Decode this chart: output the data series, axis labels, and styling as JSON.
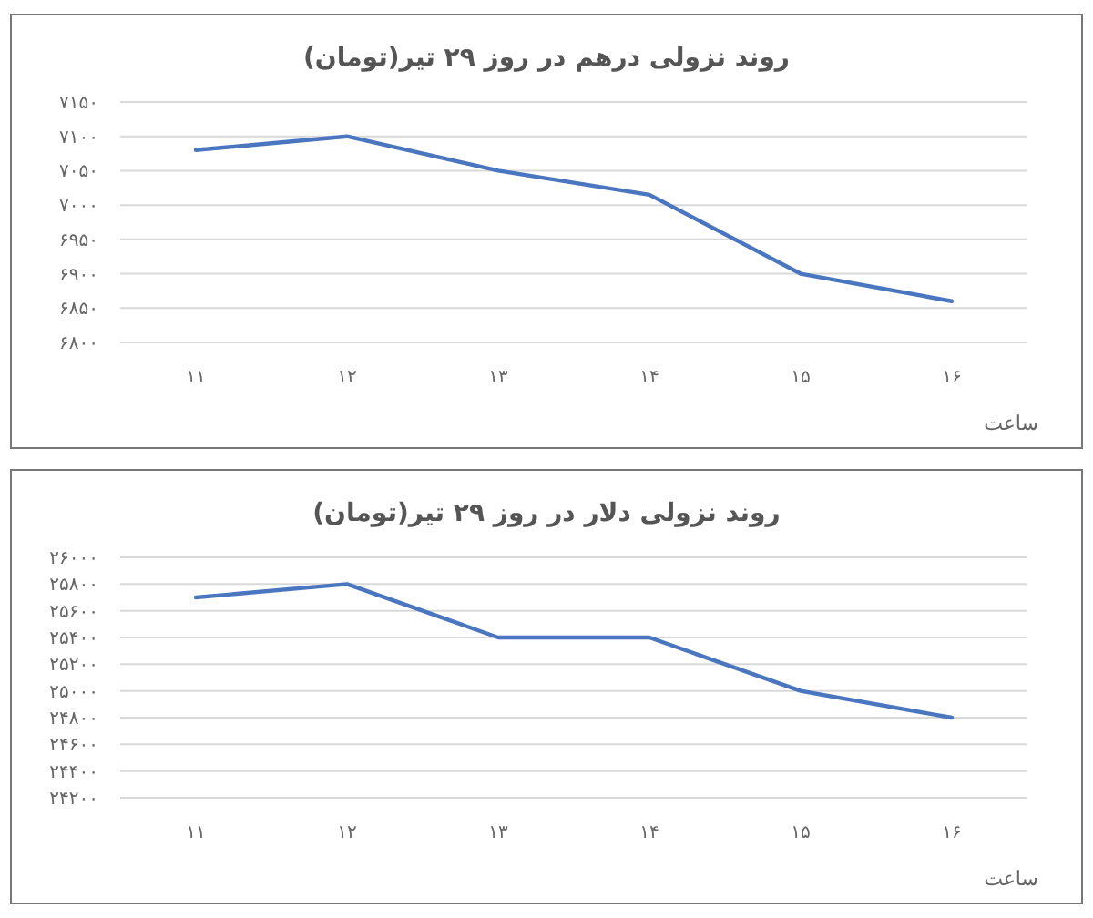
{
  "chart_data": [
    {
      "type": "line",
      "title": "روند نزولی درهم در روز ۲۹ تیر(تومان)",
      "xlabel": "ساعت",
      "categories": [
        "۱۱",
        "۱۲",
        "۱۳",
        "۱۴",
        "۱۵",
        "۱۶"
      ],
      "series": [
        {
          "color": "#4a76c0",
          "values": [
            7080,
            7100,
            7050,
            7015,
            6900,
            6860
          ]
        }
      ],
      "ylim": [
        6800,
        7150
      ],
      "yticks": [
        {
          "value": 6800,
          "label": "۶۸۰۰"
        },
        {
          "value": 6850,
          "label": "۶۸۵۰"
        },
        {
          "value": 6900,
          "label": "۶۹۰۰"
        },
        {
          "value": 6950,
          "label": "۶۹۵۰"
        },
        {
          "value": 7000,
          "label": "۷۰۰۰"
        },
        {
          "value": 7050,
          "label": "۷۰۵۰"
        },
        {
          "value": 7100,
          "label": "۷۱۰۰"
        },
        {
          "value": 7150,
          "label": "۷۱۵۰"
        }
      ],
      "grid": "y",
      "marker": "none",
      "line_style": "solid"
    },
    {
      "type": "line",
      "title": "روند نزولی دلار در روز ۲۹ تیر(تومان)",
      "xlabel": "ساعت",
      "categories": [
        "۱۱",
        "۱۲",
        "۱۳",
        "۱۴",
        "۱۵",
        "۱۶"
      ],
      "series": [
        {
          "color": "#4a76c0",
          "values": [
            25700,
            25800,
            25400,
            25400,
            25000,
            24800
          ]
        }
      ],
      "ylim": [
        24200,
        26000
      ],
      "yticks": [
        {
          "value": 24200,
          "label": "۲۴۲۰۰"
        },
        {
          "value": 24400,
          "label": "۲۴۴۰۰"
        },
        {
          "value": 24600,
          "label": "۲۴۶۰۰"
        },
        {
          "value": 24800,
          "label": "۲۴۸۰۰"
        },
        {
          "value": 25000,
          "label": "۲۵۰۰۰"
        },
        {
          "value": 25200,
          "label": "۲۵۲۰۰"
        },
        {
          "value": 25400,
          "label": "۲۵۴۰۰"
        },
        {
          "value": 25600,
          "label": "۲۵۶۰۰"
        },
        {
          "value": 25800,
          "label": "۲۵۸۰۰"
        },
        {
          "value": 26000,
          "label": "۲۶۰۰۰"
        }
      ],
      "grid": "y",
      "marker": "none",
      "line_style": "solid"
    }
  ]
}
